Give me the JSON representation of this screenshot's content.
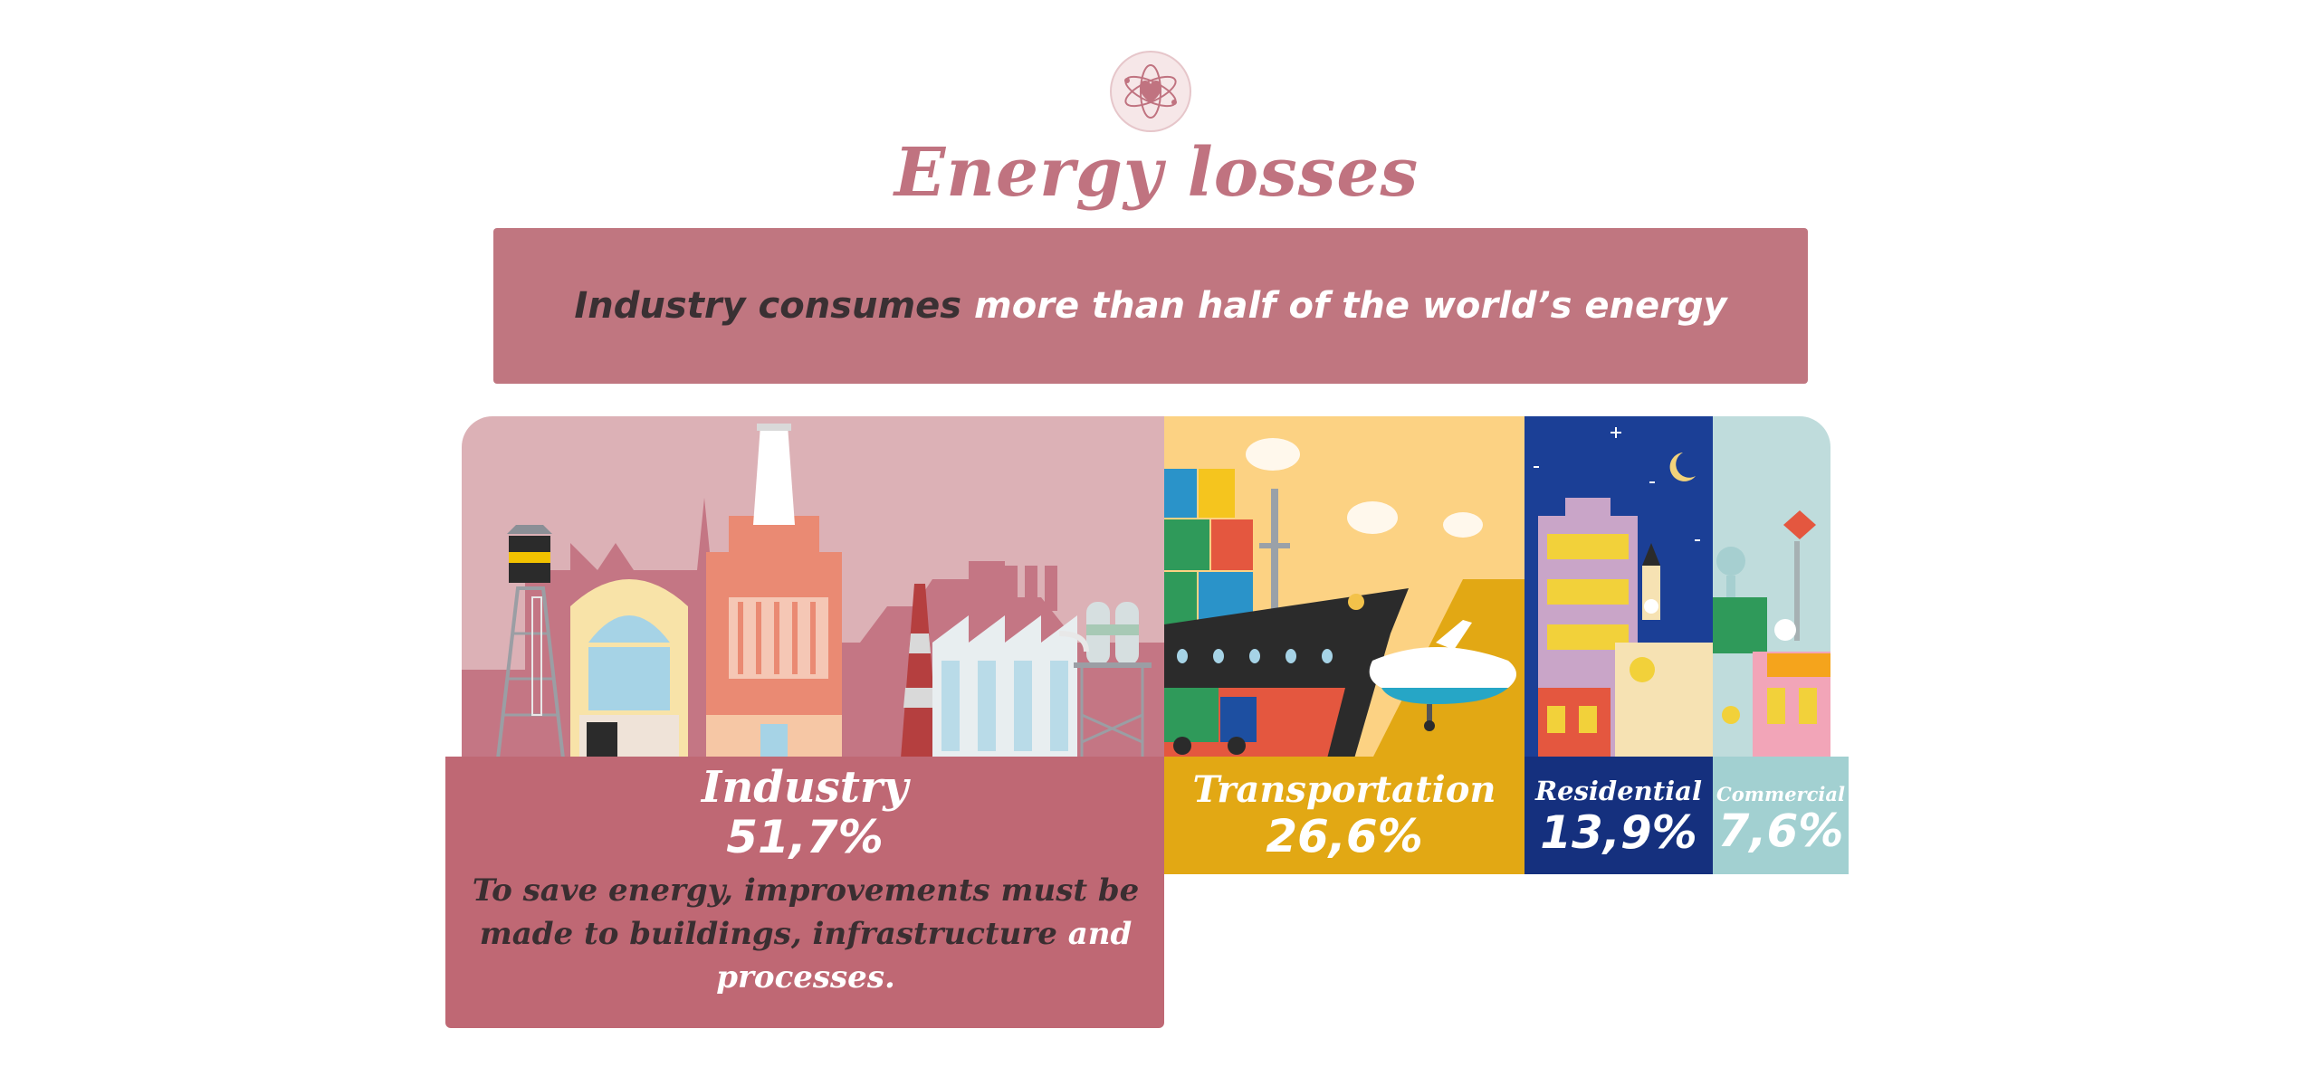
{
  "header": {
    "title": "Energy losses",
    "logo_icon": "atom-heart-icon"
  },
  "banner": {
    "highlight": "Industry consumes",
    "text": " more than half of the world’s energy"
  },
  "note": {
    "text_dark": "To save energy, improvements must be made to buildings, infrastructure",
    "text_light": " and processes."
  },
  "colors": {
    "industry": "#bf6874",
    "transportation": "#e2a814",
    "residential": "#15307e",
    "commercial": "#a2d0d1",
    "title": "#c07380"
  },
  "chart_data": {
    "type": "bar",
    "title": "Energy losses",
    "categories": [
      "Industry",
      "Transportation",
      "Residential",
      "Commercial"
    ],
    "values": [
      51.7,
      26.6,
      13.9,
      7.6
    ],
    "value_labels": [
      "51,7%",
      "26,6%",
      "13,9%",
      "7,6%"
    ],
    "unit": "%"
  }
}
